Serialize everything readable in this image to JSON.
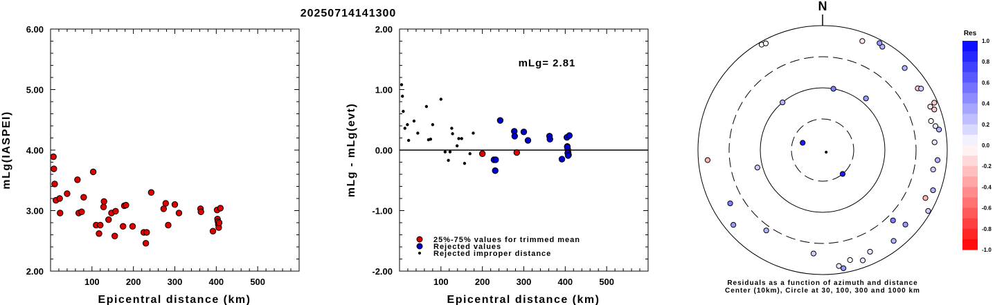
{
  "title": "20250714141300",
  "chart_data": [
    {
      "type": "scatter",
      "title": "",
      "xlabel": "Epicentral distance (km)",
      "ylabel": "mLg(IASPEI)",
      "xlim": [
        0,
        600
      ],
      "ylim": [
        2.0,
        6.0
      ],
      "xticks": [
        "100",
        "200",
        "300",
        "400",
        "500"
      ],
      "yticks": [
        "2.00",
        "3.00",
        "4.00",
        "5.00",
        "6.00"
      ],
      "series": [
        {
          "color": "#dd0000",
          "points": [
            [
              7,
              3.89
            ],
            [
              8,
              3.69
            ],
            [
              10,
              3.44
            ],
            [
              13,
              3.17
            ],
            [
              22,
              3.2
            ],
            [
              23,
              2.96
            ],
            [
              40,
              3.28
            ],
            [
              65,
              3.51
            ],
            [
              68,
              2.96
            ],
            [
              75,
              2.98
            ],
            [
              80,
              3.22
            ],
            [
              103,
              3.64
            ],
            [
              110,
              2.76
            ],
            [
              117,
              2.62
            ],
            [
              120,
              2.76
            ],
            [
              128,
              3.06
            ],
            [
              129,
              3.15
            ],
            [
              140,
              2.85
            ],
            [
              147,
              2.96
            ],
            [
              155,
              2.58
            ],
            [
              157,
              2.99
            ],
            [
              175,
              2.74
            ],
            [
              178,
              3.08
            ],
            [
              182,
              3.09
            ],
            [
              198,
              2.74
            ],
            [
              225,
              2.64
            ],
            [
              230,
              2.46
            ],
            [
              232,
              2.64
            ],
            [
              243,
              3.3
            ],
            [
              273,
              3.03
            ],
            [
              278,
              3.12
            ],
            [
              284,
              2.76
            ],
            [
              300,
              3.1
            ],
            [
              310,
              2.96
            ],
            [
              362,
              3.03
            ],
            [
              363,
              2.98
            ],
            [
              392,
              2.66
            ],
            [
              402,
              3.01
            ],
            [
              403,
              2.86
            ],
            [
              404,
              2.82
            ],
            [
              405,
              2.77
            ],
            [
              406,
              2.72
            ],
            [
              407,
              2.8
            ],
            [
              410,
              3.04
            ]
          ]
        }
      ]
    },
    {
      "type": "scatter",
      "title": "",
      "annotation": "mLg= 2.81",
      "xlabel": "Epicentral distance (km)",
      "ylabel": "mLg - mLg(evt)",
      "xlim": [
        0,
        600
      ],
      "ylim": [
        -2.0,
        2.0
      ],
      "xticks": [
        "100",
        "200",
        "300",
        "400",
        "500"
      ],
      "yticks": [
        "-2.00",
        "-1.00",
        "0.00",
        "1.00",
        "2.00"
      ],
      "reference_line": 0.0,
      "legend": {
        "position": "bottom-left",
        "entries": [
          {
            "label": "25%-75% values for trimmed mean",
            "color": "#dd0000",
            "marker": "large"
          },
          {
            "label": "Rejected values",
            "color": "#0000cc",
            "marker": "large"
          },
          {
            "label": "Rejected improper distance",
            "color": "#000000",
            "marker": "small"
          }
        ]
      },
      "series": [
        {
          "name": "25%-75% values for trimmed mean",
          "color": "#dd0000",
          "points": [
            [
              200,
              -0.06
            ],
            [
              283,
              -0.04
            ],
            [
              405,
              0.06
            ],
            [
              406,
              0.01
            ],
            [
              407,
              -0.04
            ],
            [
              408,
              -0.08
            ]
          ]
        },
        {
          "name": "Rejected values",
          "color": "#0000cc",
          "points": [
            [
              228,
              -0.16
            ],
            [
              232,
              -0.16
            ],
            [
              231,
              -0.34
            ],
            [
              243,
              0.49
            ],
            [
              277,
              0.31
            ],
            [
              278,
              0.23
            ],
            [
              300,
              0.3
            ],
            [
              310,
              0.16
            ],
            [
              362,
              0.23
            ],
            [
              363,
              0.18
            ],
            [
              392,
              -0.15
            ],
            [
              404,
              0.21
            ],
            [
              405,
              0.05
            ],
            [
              406,
              -0.05
            ],
            [
              407,
              -0.09
            ],
            [
              410,
              0.24
            ]
          ]
        },
        {
          "name": "Rejected improper distance",
          "color": "#000000",
          "points": [
            [
              5,
              1.08
            ],
            [
              7,
              0.89
            ],
            [
              9,
              0.64
            ],
            [
              13,
              0.36
            ],
            [
              19,
              0.42
            ],
            [
              22,
              0.16
            ],
            [
              35,
              0.48
            ],
            [
              44,
              0.28
            ],
            [
              65,
              0.72
            ],
            [
              70,
              0.17
            ],
            [
              75,
              0.18
            ],
            [
              80,
              0.42
            ],
            [
              100,
              0.84
            ],
            [
              110,
              -0.03
            ],
            [
              118,
              -0.17
            ],
            [
              122,
              -0.03
            ],
            [
              126,
              0.36
            ],
            [
              128,
              0.27
            ],
            [
              139,
              0.07
            ],
            [
              143,
              0.19
            ],
            [
              150,
              0.19
            ],
            [
              157,
              -0.22
            ],
            [
              170,
              -0.06
            ],
            [
              178,
              0.28
            ]
          ]
        }
      ]
    },
    {
      "type": "scatter",
      "title": "N",
      "caption_line1": "Residuals as a function of azimuth and distance",
      "caption_line2": "Center (10km), Circle at 30, 100, 300 and 1000 km",
      "colorbar": {
        "title": "Res",
        "ticks": [
          "1.0",
          "0.8",
          "0.6",
          "0.4",
          "0.2",
          "0.0",
          "-0.2",
          "-0.4",
          "-0.6",
          "-0.8",
          "-1.0"
        ]
      },
      "points": [
        {
          "az": 330,
          "dist": 900,
          "res": 0.0
        },
        {
          "az": 332,
          "dist": 870,
          "res": 0.0
        },
        {
          "az": 30,
          "dist": 820,
          "res": 0.3
        },
        {
          "az": 28,
          "dist": 880,
          "res": 0.4
        },
        {
          "az": 20,
          "dist": 720,
          "res": -0.1
        },
        {
          "az": 45,
          "dist": 720,
          "res": 0.3
        },
        {
          "az": 57,
          "dist": 650,
          "res": -0.2
        },
        {
          "az": 58,
          "dist": 720,
          "res": 0.2
        },
        {
          "az": 68,
          "dist": 720,
          "res": -0.1
        },
        {
          "az": 70,
          "dist": 800,
          "res": -0.2
        },
        {
          "az": 67,
          "dist": 880,
          "res": -0.2
        },
        {
          "az": 75,
          "dist": 620,
          "res": 0.0
        },
        {
          "az": 78,
          "dist": 700,
          "res": 0.1
        },
        {
          "az": 80,
          "dist": 780,
          "res": 0.3
        },
        {
          "az": 86,
          "dist": 620,
          "res": 0.1
        },
        {
          "az": 95,
          "dist": 700,
          "res": 0.3
        },
        {
          "az": 100,
          "dist": 620,
          "res": 0.2
        },
        {
          "az": 115,
          "dist": 650,
          "res": -0.3
        },
        {
          "az": 110,
          "dist": 760,
          "res": 0.3
        },
        {
          "az": 120,
          "dist": 900,
          "res": 0.2
        },
        {
          "az": 132,
          "dist": 600,
          "res": 0.4
        },
        {
          "az": 135,
          "dist": 380,
          "res": 0.5
        },
        {
          "az": 142,
          "dist": 700,
          "res": 0.3
        },
        {
          "az": 155,
          "dist": 620,
          "res": 0.1
        },
        {
          "az": 160,
          "dist": 760,
          "res": 0.1
        },
        {
          "az": 166,
          "dist": 650,
          "res": 0.0
        },
        {
          "az": 172,
          "dist": 750,
          "res": 0.1
        },
        {
          "az": 170,
          "dist": 840,
          "res": 0.4
        },
        {
          "az": 185,
          "dist": 450,
          "res": 0.2
        },
        {
          "az": 215,
          "dist": 360,
          "res": 0.3
        },
        {
          "az": 230,
          "dist": 730,
          "res": 0.4
        },
        {
          "az": 240,
          "dist": 500,
          "res": 0.5
        },
        {
          "az": 255,
          "dist": 120,
          "res": 0.2
        },
        {
          "az": 265,
          "dist": 700,
          "res": -0.3
        },
        {
          "az": 320,
          "dist": 100,
          "res": 0.3
        },
        {
          "az": 40,
          "dist": 120,
          "res": 0.4
        },
        {
          "az": 10,
          "dist": 100,
          "res": 0.5
        },
        {
          "az": 140,
          "dist": 30,
          "res": 0.9
        },
        {
          "az": 290,
          "dist": 20,
          "res": 0.9
        },
        {
          "az": 120,
          "dist": 10,
          "res": 0.0,
          "small": true
        }
      ]
    }
  ]
}
